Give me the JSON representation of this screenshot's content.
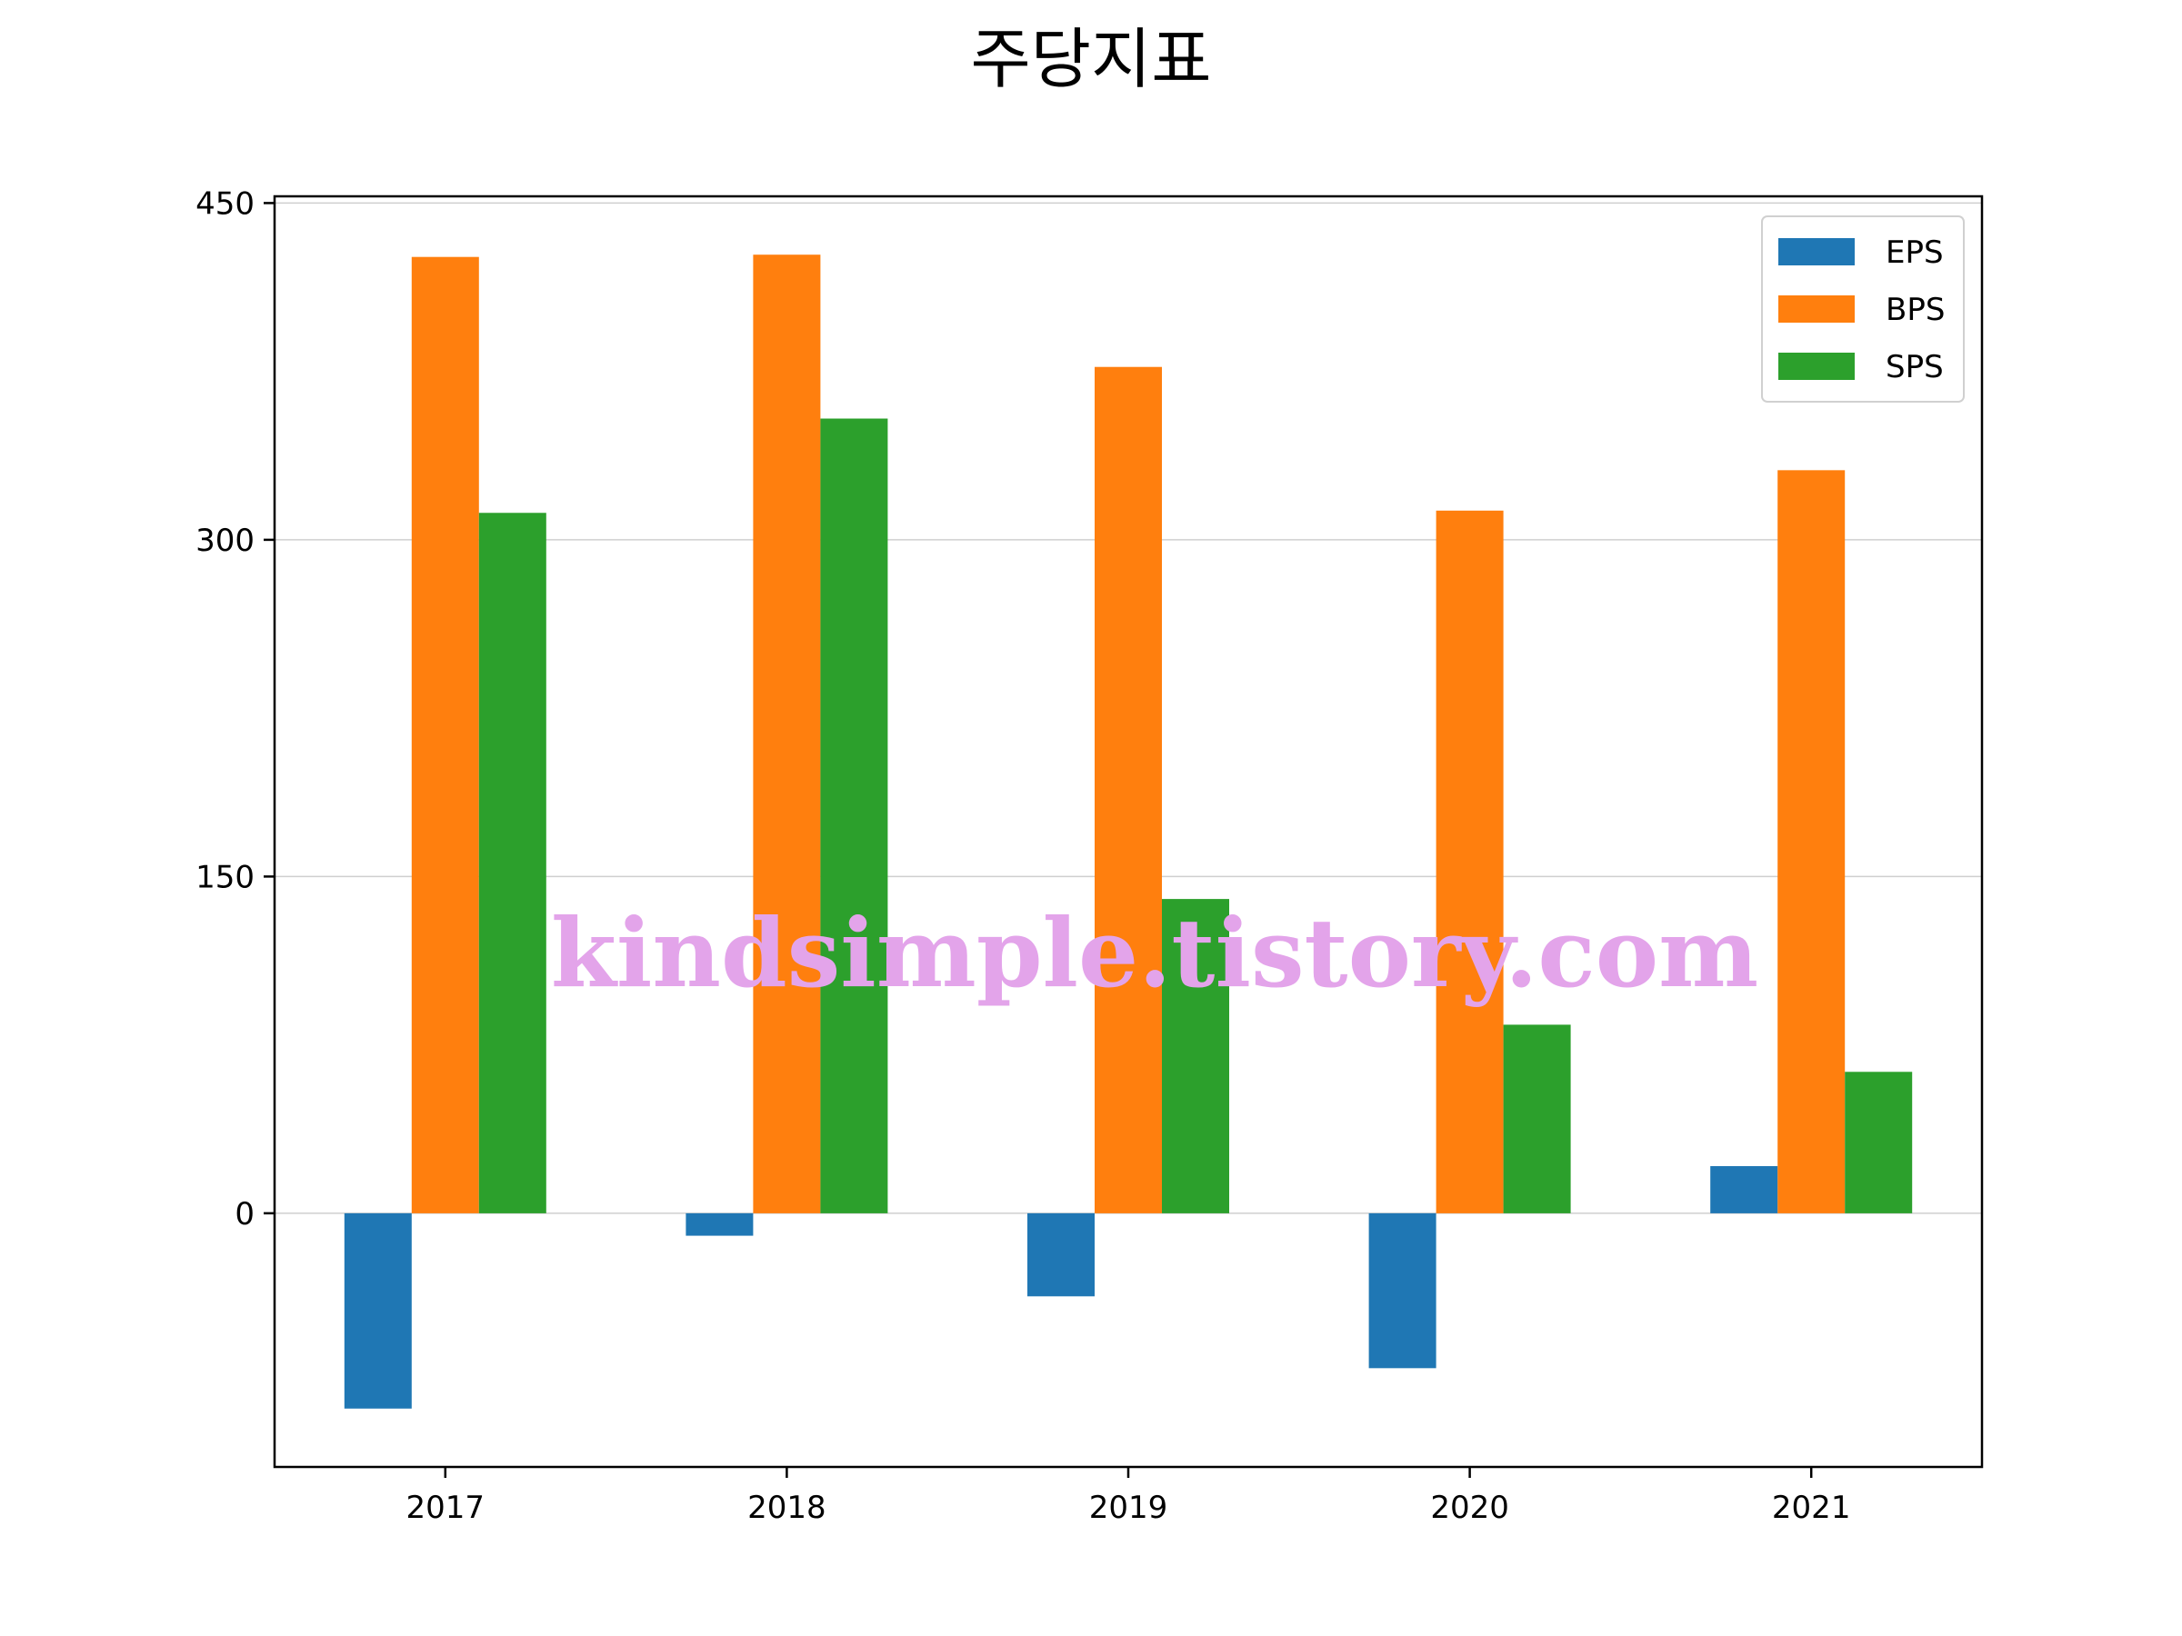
{
  "chart_data": {
    "type": "bar",
    "title": "주당지표",
    "categories": [
      "2017",
      "2018",
      "2019",
      "2020",
      "2021"
    ],
    "series": [
      {
        "name": "EPS",
        "color": "#1f77b4",
        "values": [
          -87,
          -10,
          -37,
          -69,
          21
        ]
      },
      {
        "name": "BPS",
        "color": "#ff7f0e",
        "values": [
          426,
          427,
          377,
          313,
          331
        ]
      },
      {
        "name": "SPS",
        "color": "#2ca02c",
        "values": [
          312,
          354,
          140,
          84,
          63
        ]
      }
    ],
    "yticks": [
      "0",
      "150",
      "300",
      "450"
    ],
    "ylim": [
      -113,
      453
    ],
    "grid": "y",
    "legend_position": "top-right"
  },
  "watermark": "kindsimple.tistory.com"
}
